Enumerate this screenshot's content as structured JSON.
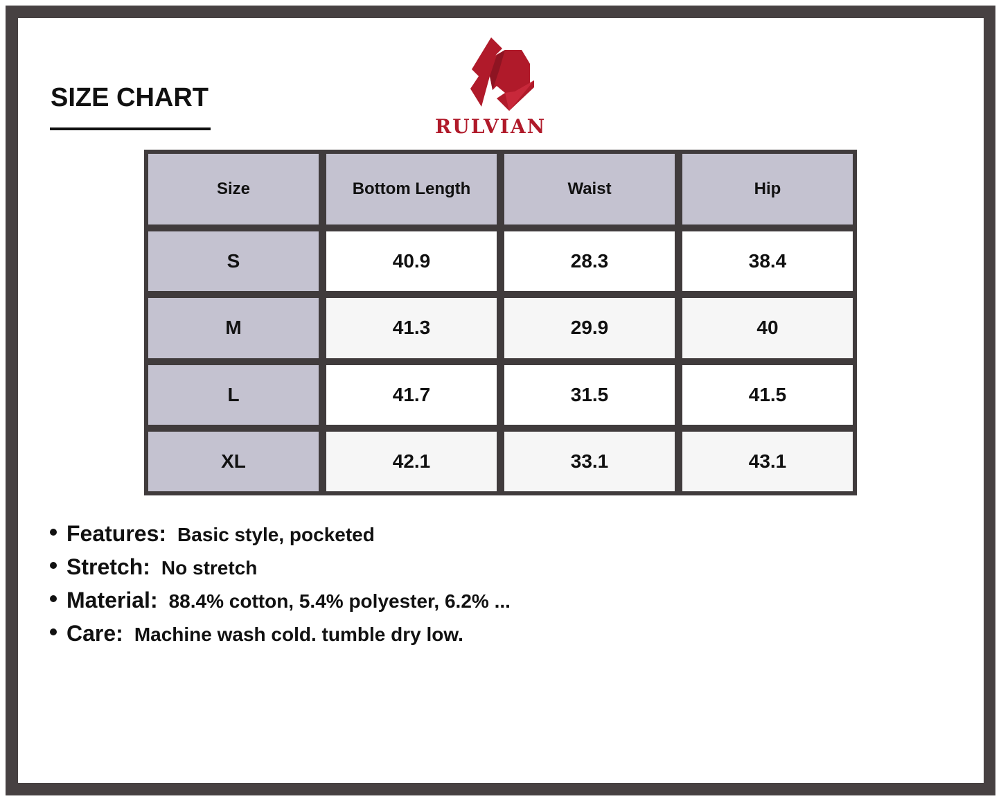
{
  "title": "SIZE CHART",
  "brand": {
    "name": "RULVIAN",
    "color": "#b01a2a",
    "logo_icon": "rulvian-r-logo"
  },
  "table": {
    "headers": [
      "Size",
      "Bottom Length",
      "Waist",
      "Hip"
    ],
    "rows": [
      [
        "S",
        "40.9",
        "28.3",
        "38.4"
      ],
      [
        "M",
        "41.3",
        "29.9",
        "40"
      ],
      [
        "L",
        "41.7",
        "31.5",
        "41.5"
      ],
      [
        "XL",
        "42.1",
        "33.1",
        "43.1"
      ]
    ]
  },
  "notes": [
    {
      "label": "Features:",
      "value": "Basic style, pocketed"
    },
    {
      "label": "Stretch:",
      "value": "No stretch"
    },
    {
      "label": "Material:",
      "value": "88.4% cotton, 5.4% polyester, 6.2% ..."
    },
    {
      "label": "Care:",
      "value": "Machine wash cold. tumble dry low."
    }
  ],
  "colors": {
    "frame": "#474142",
    "header_bg": "#c4c2d0",
    "grid": "#403b3c"
  }
}
